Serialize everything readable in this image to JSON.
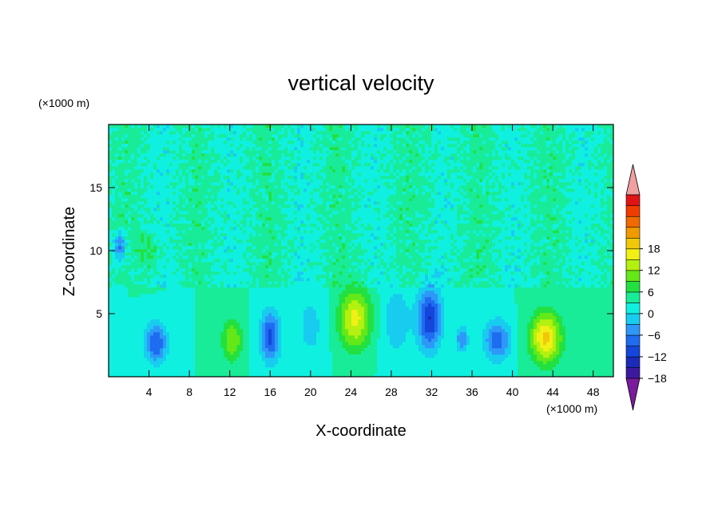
{
  "chart_data": {
    "type": "heatmap",
    "title": "vertical velocity",
    "xlabel": "X-coordinate",
    "ylabel": "Z-coordinate",
    "x_unit": "(×1000 m)",
    "y_unit": "(×1000 m)",
    "xlim": [
      0,
      50
    ],
    "ylim": [
      0,
      20
    ],
    "x_ticks": [
      "4",
      "8",
      "12",
      "16",
      "20",
      "24",
      "28",
      "32",
      "36",
      "40",
      "44",
      "48"
    ],
    "x_tick_values": [
      4,
      8,
      12,
      16,
      20,
      24,
      28,
      32,
      36,
      40,
      44,
      48
    ],
    "y_ticks": [
      "5",
      "10",
      "15"
    ],
    "y_tick_values": [
      5,
      10,
      15
    ],
    "colorbar": {
      "levels_min": -21,
      "levels_max": 21,
      "step": 3,
      "labels": [
        "18",
        "12",
        "6",
        "0",
        "−6",
        "−12",
        "−18"
      ],
      "label_values": [
        18,
        12,
        6,
        0,
        -6,
        -12,
        -18
      ],
      "colors": [
        "#7a1a9c",
        "#3c1aa0",
        "#1c2ab8",
        "#1446dc",
        "#1e6cf0",
        "#2e98f8",
        "#18ccf0",
        "#10f0e0",
        "#18ec98",
        "#22e040",
        "#64e818",
        "#b4f010",
        "#f0f014",
        "#f0c80a",
        "#f09a00",
        "#f06a00",
        "#f03c00",
        "#e01414",
        "#f0a0a0"
      ]
    },
    "features": [
      {
        "x": 4.7,
        "z": 2.7,
        "sx": 1.1,
        "sz": 1.6,
        "w": -12
      },
      {
        "x": 12.2,
        "z": 2.9,
        "sx": 1.0,
        "sz": 1.7,
        "w": 9
      },
      {
        "x": 16.0,
        "z": 3.2,
        "sx": 1.0,
        "sz": 2.0,
        "w": -13
      },
      {
        "x": 24.4,
        "z": 4.6,
        "sx": 1.6,
        "sz": 2.4,
        "w": 13
      },
      {
        "x": 31.8,
        "z": 4.6,
        "sx": 1.2,
        "sz": 2.4,
        "w": -15
      },
      {
        "x": 38.5,
        "z": 2.9,
        "sx": 1.3,
        "sz": 1.6,
        "w": -11
      },
      {
        "x": 43.3,
        "z": 3.1,
        "sx": 1.5,
        "sz": 2.0,
        "w": 16
      },
      {
        "x": 1.1,
        "z": 10.3,
        "sx": 0.6,
        "sz": 1.2,
        "w": -10
      },
      {
        "x": 4.0,
        "z": 10.0,
        "sx": 1.0,
        "sz": 1.5,
        "w": 4
      },
      {
        "x": 28.5,
        "z": 4.5,
        "sx": 1.5,
        "sz": 3.0,
        "w": -5
      },
      {
        "x": 20.0,
        "z": 4.0,
        "sx": 1.5,
        "sz": 3.0,
        "w": -4
      },
      {
        "x": 35.0,
        "z": 3.0,
        "sx": 0.6,
        "sz": 1.0,
        "w": -9
      }
    ]
  }
}
